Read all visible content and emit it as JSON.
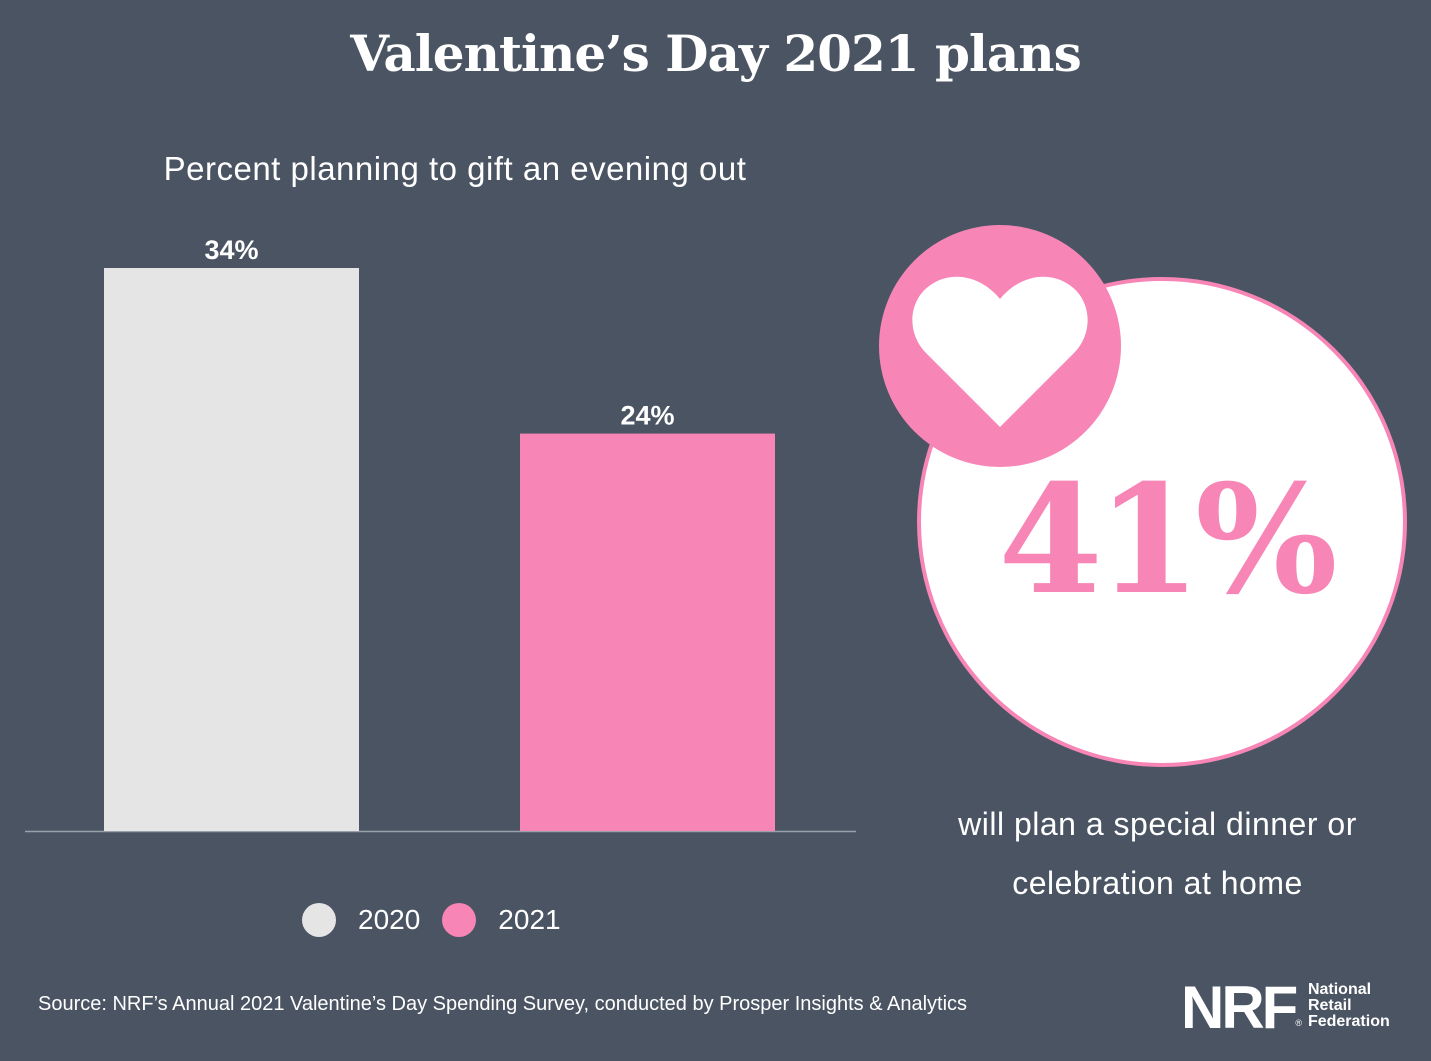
{
  "title": "Valentine’s Day 2021 plans",
  "chart_data": {
    "type": "bar",
    "title": "Percent planning to gift an evening out",
    "categories": [
      "2020",
      "2021"
    ],
    "values": [
      34,
      24
    ],
    "value_labels": [
      "34%",
      "24%"
    ],
    "colors": [
      "#e5e5e5",
      "#f785b6"
    ],
    "ylim": [
      0,
      34
    ],
    "grid": false,
    "legend": {
      "placement": "bottom",
      "entries": [
        {
          "label": "2020",
          "color": "#e5e5e5"
        },
        {
          "label": "2021",
          "color": "#f785b6"
        }
      ]
    }
  },
  "callout": {
    "value": "41%",
    "caption_line1": "will plan a special dinner or",
    "caption_line2": "celebration at home",
    "icon": "heart-icon",
    "accent_color": "#f785b6"
  },
  "source": "Source: NRF’s Annual 2021 Valentine’s Day Spending Survey, conducted by Prosper Insights & Analytics",
  "logo": {
    "mark": "NRF",
    "registered": "®",
    "name_lines": [
      "National",
      "Retail",
      "Federation"
    ]
  }
}
